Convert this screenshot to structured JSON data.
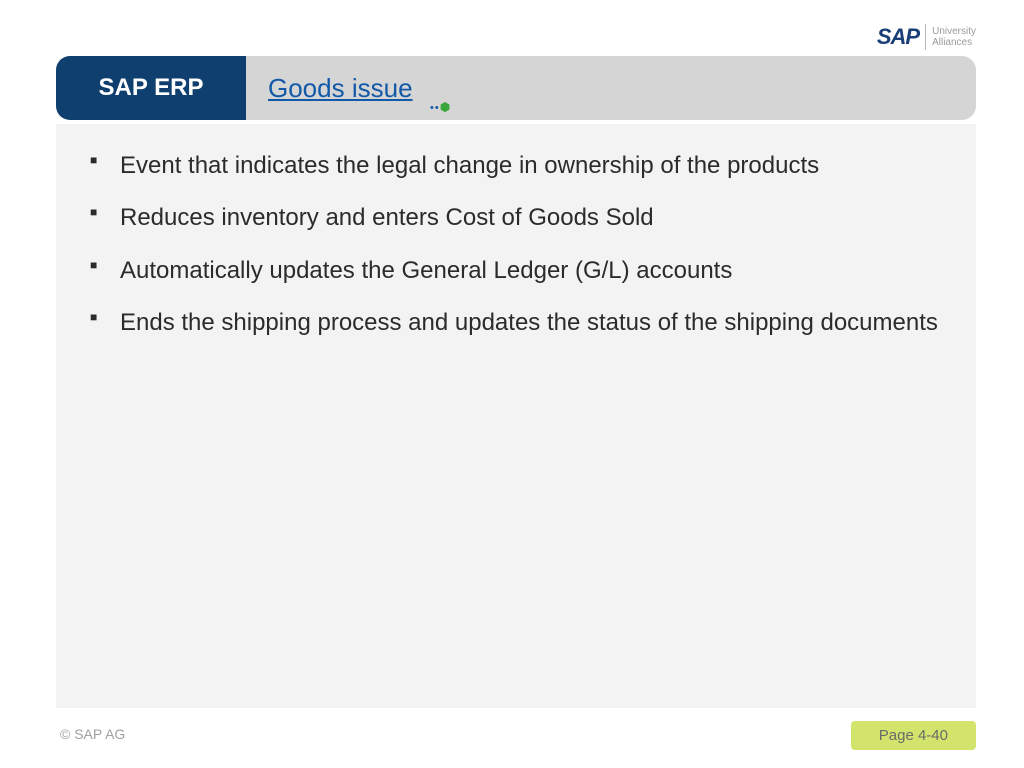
{
  "colors": {
    "header_left_bg": "#0f3f6e",
    "header_right_bg": "#d5d5d5",
    "title_link": "#1259a8",
    "content_bg": "#f3f3f3",
    "footer_badge_bg": "#d2e46c",
    "sap_logo": "#1a3e78",
    "decor_green": "#39a63a"
  },
  "logo": {
    "brand": "SAP",
    "subtext_line1": "University",
    "subtext_line2": "Alliances"
  },
  "header": {
    "left_label": "SAP ERP",
    "title": "Goods issue"
  },
  "bullets": [
    "Event that indicates the legal change in ownership of the products",
    "Reduces inventory and enters Cost of Goods Sold",
    "Automatically updates the General Ledger (G/L) accounts",
    "Ends the shipping process and updates the status of the shipping documents"
  ],
  "footer": {
    "copyright": "© SAP AG",
    "page": "Page 4-40"
  }
}
